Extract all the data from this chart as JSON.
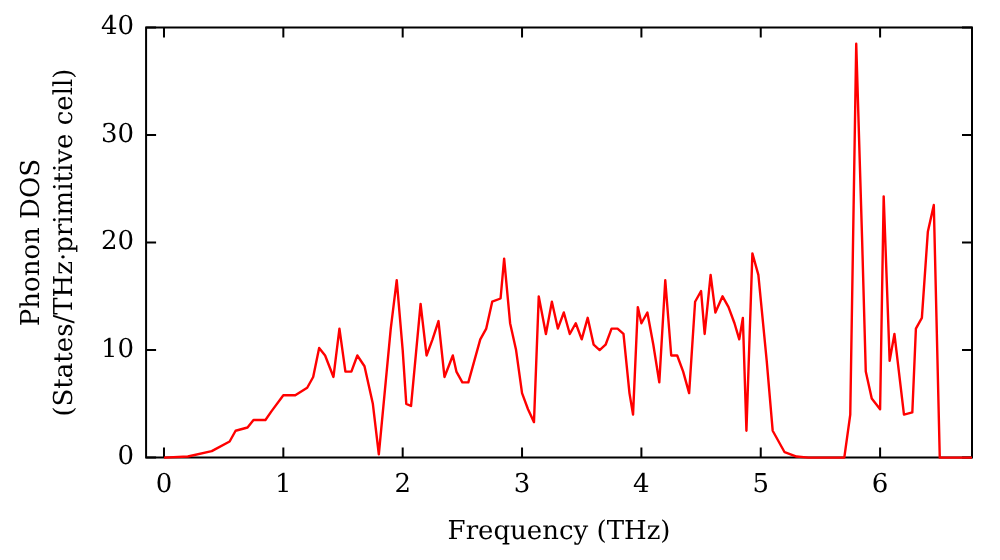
{
  "chart_data": {
    "type": "line",
    "xlabel": "Frequency (THz)",
    "ylabel": "Phonon DOS\n(States/THz·primitive cell)",
    "xlim": [
      -0.15,
      6.77
    ],
    "xticks": [
      0,
      1,
      2,
      3,
      4,
      5,
      6
    ],
    "ylim": [
      0,
      40
    ],
    "yticks": [
      0,
      10,
      20,
      30,
      40
    ],
    "grid": false,
    "legend": false,
    "marker": "none",
    "line_style": "solid",
    "series": [
      {
        "color": "#ff0000",
        "x": [
          0,
          0.2,
          0.4,
          0.55,
          0.6,
          0.7,
          0.75,
          0.85,
          0.9,
          1.0,
          1.1,
          1.2,
          1.25,
          1.3,
          1.35,
          1.42,
          1.47,
          1.52,
          1.57,
          1.62,
          1.68,
          1.75,
          1.8,
          1.9,
          1.95,
          2.0,
          2.03,
          2.07,
          2.15,
          2.2,
          2.25,
          2.3,
          2.35,
          2.42,
          2.45,
          2.5,
          2.55,
          2.65,
          2.7,
          2.75,
          2.82,
          2.85,
          2.9,
          2.95,
          3.0,
          3.05,
          3.1,
          3.14,
          3.2,
          3.25,
          3.3,
          3.35,
          3.4,
          3.45,
          3.5,
          3.55,
          3.6,
          3.65,
          3.7,
          3.75,
          3.8,
          3.85,
          3.9,
          3.93,
          3.97,
          4.0,
          4.05,
          4.1,
          4.15,
          4.2,
          4.25,
          4.3,
          4.35,
          4.4,
          4.45,
          4.5,
          4.53,
          4.58,
          4.62,
          4.68,
          4.73,
          4.78,
          4.82,
          4.85,
          4.88,
          4.93,
          4.98,
          5.05,
          5.1,
          5.2,
          5.3,
          5.4,
          5.7,
          5.75,
          5.8,
          5.85,
          5.88,
          5.93,
          6.0,
          6.03,
          6.08,
          6.12,
          6.2,
          6.27,
          6.3,
          6.35,
          6.4,
          6.45,
          6.5,
          6.77
        ],
        "values": [
          0,
          0.1,
          0.6,
          1.5,
          2.5,
          2.8,
          3.5,
          3.5,
          4.3,
          5.8,
          5.8,
          6.5,
          7.5,
          10.2,
          9.5,
          7.5,
          12,
          8,
          8,
          9.5,
          8.5,
          5,
          0.3,
          12,
          16.5,
          10,
          5,
          4.8,
          14.3,
          9.5,
          11,
          12.7,
          7.5,
          9.5,
          8,
          7,
          7,
          11,
          12,
          14.5,
          14.8,
          18.5,
          12.5,
          10,
          6,
          4.5,
          3.3,
          15,
          11.5,
          14.5,
          12,
          13.5,
          11.5,
          12.5,
          11,
          13,
          10.5,
          10,
          10.5,
          12,
          12,
          11.5,
          6,
          4,
          14,
          12.5,
          13.5,
          10.5,
          7,
          16.5,
          9.5,
          9.5,
          8,
          6,
          14.5,
          15.5,
          11.5,
          17,
          13.5,
          15,
          14,
          12.5,
          11,
          13,
          2.5,
          19,
          17,
          9,
          2.5,
          0.5,
          0.1,
          0,
          0,
          4,
          38.5,
          20,
          8,
          5.5,
          4.5,
          24.3,
          9,
          11.5,
          4,
          4.2,
          12,
          13,
          21,
          23.5,
          0,
          0
        ]
      }
    ]
  }
}
